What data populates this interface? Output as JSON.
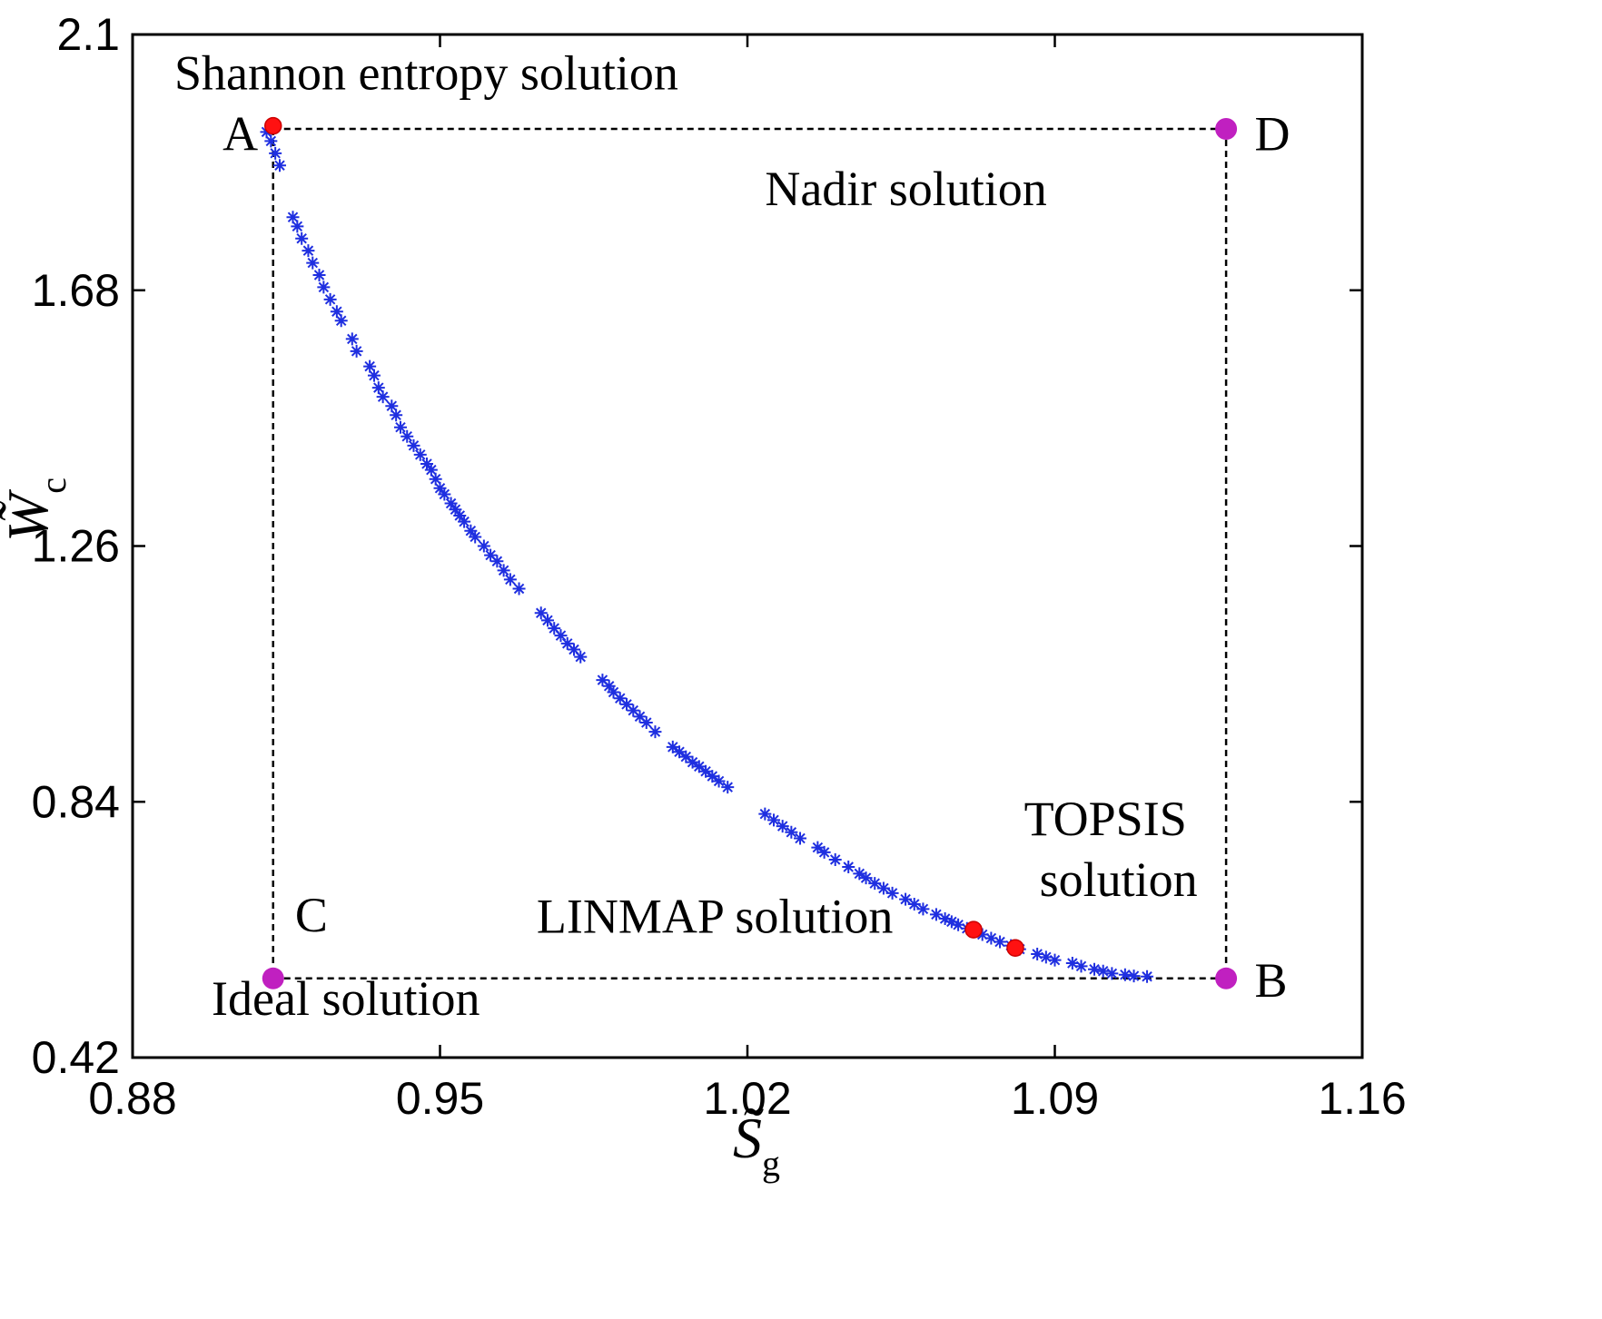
{
  "chart_data": {
    "type": "scatter",
    "title": "",
    "xlabel": {
      "symbol": "S̃",
      "subscript": "g"
    },
    "ylabel": {
      "symbol": "W̃",
      "subscript": "c"
    },
    "xlim": [
      0.88,
      1.16
    ],
    "ylim": [
      0.42,
      2.1
    ],
    "xticks": [
      "0.88",
      "0.95",
      "1.02",
      "1.09",
      "1.16"
    ],
    "yticks": [
      "0.42",
      "0.84",
      "1.26",
      "1.68",
      "2.1"
    ],
    "grid": false,
    "colors": {
      "pareto": "#1f2fe0",
      "decision": "#ff1111",
      "corner": "#c020c0",
      "reference_lines": "#000000"
    },
    "pareto_front": {
      "marker": "asterisk",
      "x": [
        0.9105,
        0.9115,
        0.9125,
        0.9135,
        0.9165,
        0.9175,
        0.9185,
        0.92,
        0.921,
        0.9225,
        0.9235,
        0.925,
        0.9265,
        0.9275,
        0.93,
        0.931,
        0.934,
        0.935,
        0.936,
        0.937,
        0.939,
        0.94,
        0.941,
        0.9425,
        0.944,
        0.9455,
        0.947,
        0.948,
        0.949,
        0.95,
        0.951,
        0.9525,
        0.9535,
        0.9545,
        0.9555,
        0.957,
        0.958,
        0.96,
        0.9615,
        0.963,
        0.9645,
        0.966,
        0.968,
        0.973,
        0.9745,
        0.976,
        0.9775,
        0.979,
        0.9805,
        0.982,
        0.987,
        0.9885,
        0.9895,
        0.991,
        0.9925,
        0.994,
        0.9955,
        0.997,
        0.999,
        1.003,
        1.0045,
        1.006,
        1.0075,
        1.009,
        1.0105,
        1.012,
        1.0135,
        1.0155,
        1.024,
        1.026,
        1.028,
        1.03,
        1.032,
        1.036,
        1.0375,
        1.04,
        1.043,
        1.0455,
        1.047,
        1.049,
        1.051,
        1.053,
        1.056,
        1.058,
        1.06,
        1.063,
        1.065,
        1.0665,
        1.068,
        1.07,
        1.0735,
        1.0755,
        1.0775,
        1.08,
        1.082,
        1.086,
        1.088,
        1.09,
        1.094,
        1.096,
        1.099,
        1.101,
        1.103,
        1.106,
        1.108,
        1.111
      ],
      "y": [
        1.94,
        1.925,
        1.905,
        1.885,
        1.8,
        1.785,
        1.765,
        1.745,
        1.725,
        1.705,
        1.685,
        1.665,
        1.645,
        1.63,
        1.6,
        1.58,
        1.555,
        1.54,
        1.52,
        1.505,
        1.49,
        1.475,
        1.455,
        1.44,
        1.425,
        1.41,
        1.395,
        1.385,
        1.37,
        1.355,
        1.345,
        1.33,
        1.32,
        1.31,
        1.3,
        1.285,
        1.275,
        1.26,
        1.245,
        1.235,
        1.22,
        1.205,
        1.19,
        1.15,
        1.138,
        1.125,
        1.113,
        1.1,
        1.09,
        1.078,
        1.04,
        1.03,
        1.02,
        1.01,
        1.0,
        0.99,
        0.98,
        0.97,
        0.955,
        0.93,
        0.922,
        0.914,
        0.905,
        0.898,
        0.89,
        0.882,
        0.874,
        0.864,
        0.82,
        0.81,
        0.8,
        0.79,
        0.78,
        0.765,
        0.757,
        0.745,
        0.733,
        0.722,
        0.715,
        0.706,
        0.698,
        0.69,
        0.68,
        0.672,
        0.664,
        0.655,
        0.648,
        0.643,
        0.638,
        0.632,
        0.622,
        0.616,
        0.61,
        0.604,
        0.598,
        0.59,
        0.585,
        0.58,
        0.575,
        0.57,
        0.565,
        0.562,
        0.558,
        0.556,
        0.554,
        0.553
      ]
    },
    "decision_points": [
      {
        "x": 0.912,
        "y": 1.95
      },
      {
        "x": 1.0715,
        "y": 0.63
      },
      {
        "x": 1.081,
        "y": 0.6
      }
    ],
    "corner_points": [
      {
        "x": 1.129,
        "y": 1.945
      },
      {
        "x": 0.912,
        "y": 0.55
      },
      {
        "x": 1.129,
        "y": 0.55
      }
    ],
    "reference_box": {
      "x_min": 0.912,
      "x_max": 1.129,
      "y_min": 0.55,
      "y_max": 1.945
    },
    "annotations": [
      {
        "id": "shannon",
        "text": "Shannon entropy solution",
        "x": 0.8895,
        "y": 2.01
      },
      {
        "id": "A",
        "text": "A",
        "x": 0.9005,
        "y": 1.91
      },
      {
        "id": "D",
        "text": "D",
        "x": 1.1355,
        "y": 1.91
      },
      {
        "id": "nadir",
        "text": "Nadir solution",
        "x": 1.024,
        "y": 1.82
      },
      {
        "id": "C",
        "text": "C",
        "x": 0.917,
        "y": 0.627
      },
      {
        "id": "ideal",
        "text": "Ideal solution",
        "x": 0.898,
        "y": 0.49
      },
      {
        "id": "B",
        "text": "B",
        "x": 1.1355,
        "y": 0.52
      },
      {
        "id": "topsis1",
        "text": "TOPSIS",
        "x": 1.083,
        "y": 0.785
      },
      {
        "id": "topsis2",
        "text": "solution",
        "x": 1.0865,
        "y": 0.685
      },
      {
        "id": "linmap",
        "text": "LINMAP solution",
        "x": 0.972,
        "y": 0.625
      }
    ]
  }
}
